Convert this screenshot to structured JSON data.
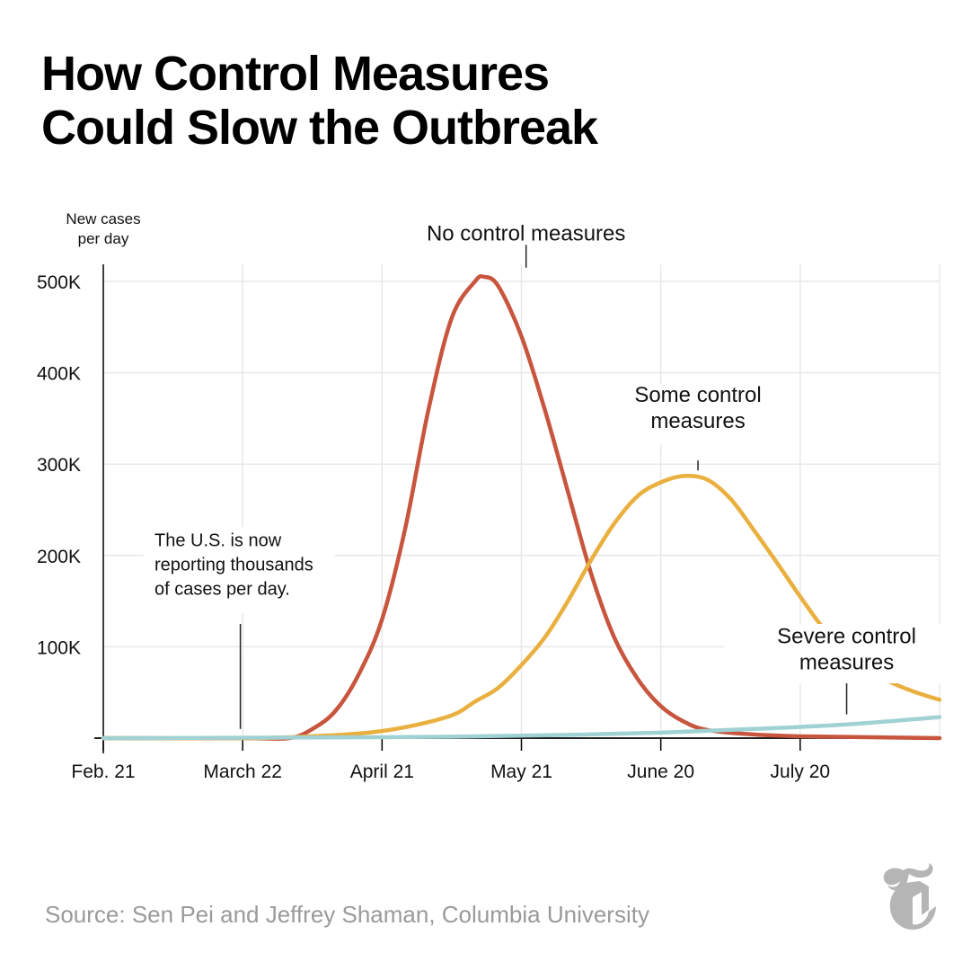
{
  "title_lines": [
    "How Control Measures",
    "Could Slow the Outbreak"
  ],
  "source": "Source: Sen Pei and Jeffrey Shaman, Columbia University",
  "logo_icon": "nyt-t-logo-icon",
  "colors": {
    "no_control": "#c8553d",
    "some_control": "#e9b040",
    "severe_control": "#a0d2d4",
    "grid": "#e8e8e8",
    "axis": "#000000",
    "text": "#111111",
    "source": "#9a9a9a"
  },
  "chart_data": {
    "type": "line",
    "title": "How Control Measures Could Slow the Outbreak",
    "ylabel_lines": [
      "New cases",
      "per day"
    ],
    "xlabel": "",
    "x_unit": "days since Feb. 21",
    "xlim": [
      0,
      180
    ],
    "ylim": [
      0,
      520000
    ],
    "grid": true,
    "y_ticks": [
      {
        "value": 100000,
        "label": "100K"
      },
      {
        "value": 200000,
        "label": "200K"
      },
      {
        "value": 300000,
        "label": "300K"
      },
      {
        "value": 400000,
        "label": "400K"
      },
      {
        "value": 500000,
        "label": "500K"
      }
    ],
    "x_ticks": [
      {
        "value": 0,
        "label": "Feb. 21"
      },
      {
        "value": 30,
        "label": "March 22"
      },
      {
        "value": 60,
        "label": "April 21"
      },
      {
        "value": 90,
        "label": "May 21"
      },
      {
        "value": 120,
        "label": "June 20"
      },
      {
        "value": 150,
        "label": "July 20"
      }
    ],
    "extra_gridlines_x": [
      180
    ],
    "series": [
      {
        "name": "No control measures",
        "color_key": "no_control",
        "label_lines": [
          "No control measures"
        ],
        "label_at": [
          91,
          545000
        ],
        "leader": [
          [
            91,
            540000
          ],
          [
            91,
            515000
          ]
        ],
        "points": [
          [
            0,
            0
          ],
          [
            30,
            0
          ],
          [
            40,
            0
          ],
          [
            45,
            10000
          ],
          [
            50,
            30000
          ],
          [
            55,
            70000
          ],
          [
            60,
            130000
          ],
          [
            65,
            230000
          ],
          [
            70,
            360000
          ],
          [
            75,
            460000
          ],
          [
            80,
            500000
          ],
          [
            82,
            505000
          ],
          [
            85,
            495000
          ],
          [
            90,
            440000
          ],
          [
            95,
            360000
          ],
          [
            100,
            270000
          ],
          [
            105,
            180000
          ],
          [
            110,
            110000
          ],
          [
            115,
            65000
          ],
          [
            120,
            35000
          ],
          [
            125,
            18000
          ],
          [
            130,
            9000
          ],
          [
            140,
            4000
          ],
          [
            150,
            2000
          ],
          [
            165,
            1000
          ],
          [
            180,
            0
          ]
        ]
      },
      {
        "name": "Some control measures",
        "color_key": "some_control",
        "label_lines": [
          "Some control",
          "measures"
        ],
        "label_at": [
          128,
          368000
        ],
        "leader": [
          [
            128,
            304000
          ],
          [
            128,
            293000
          ]
        ],
        "points": [
          [
            0,
            0
          ],
          [
            30,
            0
          ],
          [
            40,
            1000
          ],
          [
            55,
            5000
          ],
          [
            65,
            12000
          ],
          [
            75,
            25000
          ],
          [
            80,
            40000
          ],
          [
            85,
            55000
          ],
          [
            90,
            80000
          ],
          [
            95,
            110000
          ],
          [
            100,
            150000
          ],
          [
            105,
            195000
          ],
          [
            110,
            235000
          ],
          [
            115,
            265000
          ],
          [
            120,
            280000
          ],
          [
            125,
            287000
          ],
          [
            130,
            283000
          ],
          [
            135,
            262000
          ],
          [
            140,
            228000
          ],
          [
            145,
            192000
          ],
          [
            150,
            155000
          ],
          [
            155,
            120000
          ],
          [
            160,
            92000
          ],
          [
            165,
            74000
          ],
          [
            170,
            60000
          ],
          [
            175,
            50000
          ],
          [
            180,
            42000
          ]
        ]
      },
      {
        "name": "Severe control measures",
        "color_key": "severe_control",
        "label_lines": [
          "Severe control",
          "measures"
        ],
        "label_at": [
          160,
          104000
        ],
        "leader": [
          [
            160,
            60000
          ],
          [
            160,
            26000
          ]
        ],
        "points": [
          [
            0,
            0
          ],
          [
            60,
            1000
          ],
          [
            80,
            2000
          ],
          [
            100,
            3500
          ],
          [
            120,
            6000
          ],
          [
            140,
            10000
          ],
          [
            160,
            15000
          ],
          [
            180,
            23000
          ]
        ]
      }
    ],
    "annotations": [
      {
        "text_lines": [
          "The U.S. is now",
          "reporting thousands",
          "of cases per day."
        ],
        "at": [
          29.5,
          210000
        ],
        "leader": [
          [
            29.5,
            125000
          ],
          [
            29.5,
            10000
          ]
        ]
      }
    ]
  }
}
